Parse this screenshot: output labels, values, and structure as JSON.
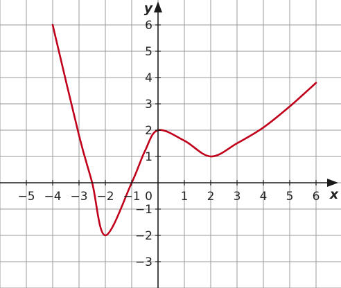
{
  "chart_data": {
    "type": "line",
    "xlabel": "x",
    "ylabel": "y",
    "origin_label": "0",
    "xlim": [
      -6,
      6.5
    ],
    "ylim": [
      -4,
      7
    ],
    "grid": true,
    "x_tick_labels": [
      "−5",
      "−4",
      "−3",
      "−2",
      "−1",
      "1",
      "2",
      "3",
      "4",
      "5",
      "6"
    ],
    "y_tick_labels": [
      "6",
      "5",
      "4",
      "3",
      "2",
      "1",
      "−1",
      "−2",
      "−3"
    ],
    "series": [
      {
        "color": "#c0001a",
        "points": [
          [
            -4,
            6
          ],
          [
            -3,
            1.8
          ],
          [
            -2.5,
            0
          ],
          [
            -2,
            -2
          ],
          [
            -1,
            0
          ],
          [
            -0.5,
            1.2
          ],
          [
            0,
            2
          ],
          [
            1,
            1.6
          ],
          [
            2,
            1
          ],
          [
            3,
            1.5
          ],
          [
            4,
            2.1
          ],
          [
            5,
            2.9
          ],
          [
            6,
            3.8
          ]
        ]
      }
    ]
  }
}
